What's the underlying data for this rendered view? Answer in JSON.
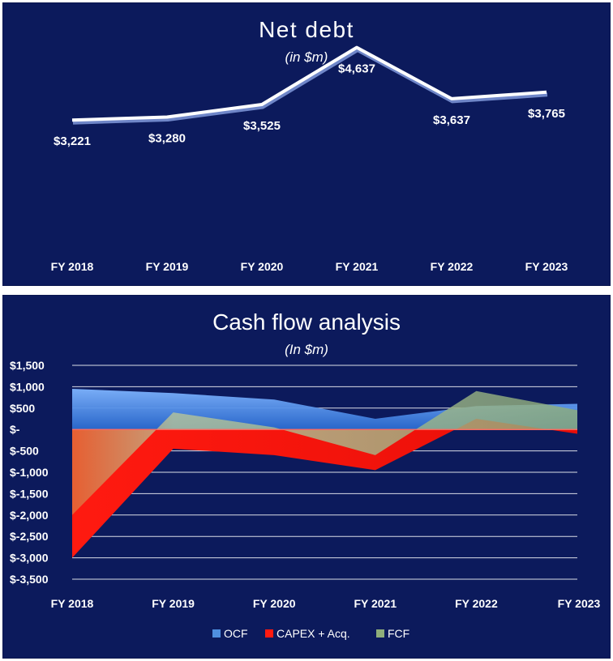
{
  "chart_data": [
    {
      "type": "line",
      "title": "Net debt",
      "subtitle": "(in $m)",
      "categories": [
        "FY 2018",
        "FY 2019",
        "FY 2020",
        "FY 2021",
        "FY 2022",
        "FY 2023"
      ],
      "series": [
        {
          "values": [
            3221,
            3280,
            3525,
            4637,
            3637,
            3765
          ],
          "data_labels": [
            "$3,221",
            "$3,280",
            "$3,525",
            "$4,637",
            "$3,637",
            "$3,765"
          ],
          "color": "#ffffff"
        }
      ],
      "ylim": [
        0,
        5500
      ],
      "grid": false,
      "legend": "none"
    },
    {
      "type": "area",
      "title": "Cash flow analysis",
      "subtitle": "(In $m)",
      "categories": [
        "FY 2018",
        "FY 2019",
        "FY 2020",
        "FY 2021",
        "FY 2022",
        "FY 2023"
      ],
      "series": [
        {
          "name": "OCF",
          "values": [
            950,
            850,
            700,
            250,
            550,
            600
          ],
          "color": "#4f8fe0"
        },
        {
          "name": "CAPEX + Acq.",
          "values": [
            -3000,
            -450,
            -600,
            -950,
            250,
            -100
          ],
          "color": "#ff1a10"
        },
        {
          "name": "FCF",
          "values": [
            -2000,
            400,
            50,
            -600,
            900,
            450
          ],
          "color": "#8fae7a"
        }
      ],
      "y_ticks": [
        "$1,500",
        "$1,000",
        "$500",
        "$-",
        "$-500",
        "$-1,000",
        "$-1,500",
        "$-2,000",
        "$-2,500",
        "$-3,000",
        "$-3,500"
      ],
      "ylim": [
        -3500,
        1500
      ],
      "grid": true,
      "legend": "bottom"
    }
  ]
}
